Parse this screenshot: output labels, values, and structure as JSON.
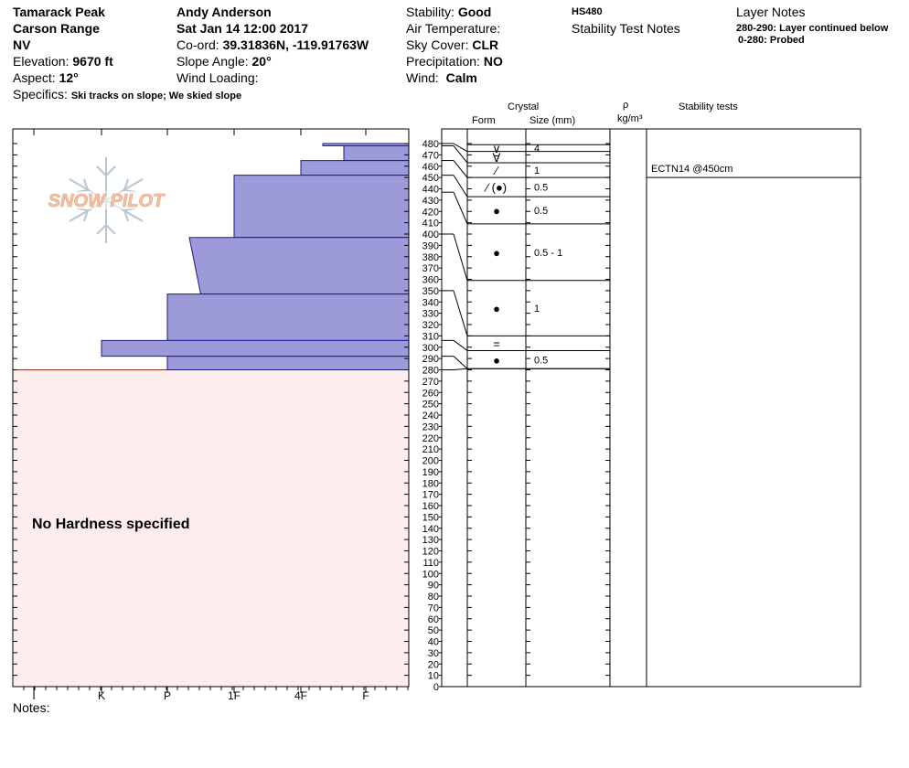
{
  "header": {
    "location": "Tamarack Peak",
    "range": "Carson Range",
    "state": "NV",
    "elevation_label": "Elevation:",
    "elevation_value": "9670 ft",
    "aspect_label": "Aspect:",
    "aspect_value": "12°",
    "specifics_label": "Specifics:",
    "specifics_value": "Ski tracks on slope; We skied slope",
    "observer": "Andy Anderson",
    "date": "Sat Jan 14 12:00 2017",
    "coord_label": "Co-ord:",
    "coord_value": "39.31836N, -119.91763W",
    "slope_label": "Slope Angle:",
    "slope_value": "20°",
    "wind_loading_label": "Wind Loading:",
    "stability_label": "Stability:",
    "stability_value": "Good",
    "air_temp_label": "Air Temperature:",
    "sky_label": "Sky Cover:",
    "sky_value": "CLR",
    "precip_label": "Precipitation:",
    "precip_value": "NO",
    "wind_label": "Wind:",
    "wind_value": "Calm",
    "hs": "HS480",
    "stability_notes": "Stability Test Notes",
    "layer_notes_title": "Layer Notes",
    "layer_notes": [
      "280-290: Layer continued below",
      "0-280: Probed"
    ]
  },
  "logo_text": "SNOW PILOT",
  "notes_label": "Notes:",
  "no_hardness_label": "No Hardness specified",
  "columns": {
    "crystal": "Crystal",
    "form": "Form",
    "size": "Size (mm)",
    "rho": "ρ",
    "density_unit": "kg/m³",
    "stability_tests": "Stability tests"
  },
  "chart_data": {
    "type": "snow-profile",
    "hardness_scale": [
      "I",
      "K",
      "P",
      "1F",
      "4F",
      "F"
    ],
    "depth_axis": {
      "min": 0,
      "max": 480,
      "step": 10,
      "unit": "cm"
    },
    "hardness_layers": [
      {
        "top": 480,
        "bottom": 478,
        "hardness_top": "4F+",
        "hardness_bottom": "4F+"
      },
      {
        "top": 478,
        "bottom": 465,
        "hardness_top": "F-",
        "hardness_bottom": "F-"
      },
      {
        "top": 465,
        "bottom": 452,
        "hardness_top": "4F",
        "hardness_bottom": "4F"
      },
      {
        "top": 452,
        "bottom": 397,
        "hardness_top": "1F",
        "hardness_bottom": "1F"
      },
      {
        "top": 397,
        "bottom": 347,
        "hardness_top": "P+",
        "hardness_bottom": "P+/1F-"
      },
      {
        "top": 347,
        "bottom": 306,
        "hardness_top": "P",
        "hardness_bottom": "P"
      },
      {
        "top": 306,
        "bottom": 292,
        "hardness_top": "K",
        "hardness_bottom": "K"
      },
      {
        "top": 292,
        "bottom": 280,
        "hardness_top": "P",
        "hardness_bottom": "P"
      }
    ],
    "no_data_below": 280,
    "crystal_layers": [
      {
        "top": 479,
        "bottom": 473,
        "form": "∨",
        "size": "4",
        "fan_depth": 480
      },
      {
        "top": 473,
        "bottom": 463,
        "form": "∀",
        "size": "",
        "fan_depth": 478
      },
      {
        "top": 463,
        "bottom": 450,
        "form": "⁄",
        "size": "1",
        "fan_depth": 465
      },
      {
        "top": 450,
        "bottom": 433,
        "form": "⁄ (●)",
        "size": "0.5",
        "fan_depth": 452
      },
      {
        "top": 433,
        "bottom": 409,
        "form": "●",
        "size": "0.5",
        "fan_depth": 437
      },
      {
        "top": 409,
        "bottom": 359,
        "form": "●",
        "size": "0.5 - 1",
        "fan_depth": 400
      },
      {
        "top": 359,
        "bottom": 310,
        "form": "●",
        "size": "1",
        "fan_depth": 350
      },
      {
        "top": 310,
        "bottom": 297,
        "form": "=",
        "size": "",
        "fan_depth": 306
      },
      {
        "top": 297,
        "bottom": 281,
        "form": "●",
        "size": "0.5",
        "fan_depth": 292
      },
      {
        "top": 281,
        "bottom": 281,
        "form": "",
        "size": "",
        "fan_depth": 280
      }
    ],
    "stability_test_results": [
      {
        "text": "ECTN14 @450cm",
        "depth": 450
      }
    ]
  },
  "colors": {
    "layer_fill": "#9c9ad9",
    "layer_stroke": "#1a1a8c",
    "no_data_fill": "#fdeeed",
    "ground_line": "#8b2a1a",
    "logo_text": "#f0c2a8",
    "logo_flake": "#b4c6d2"
  }
}
